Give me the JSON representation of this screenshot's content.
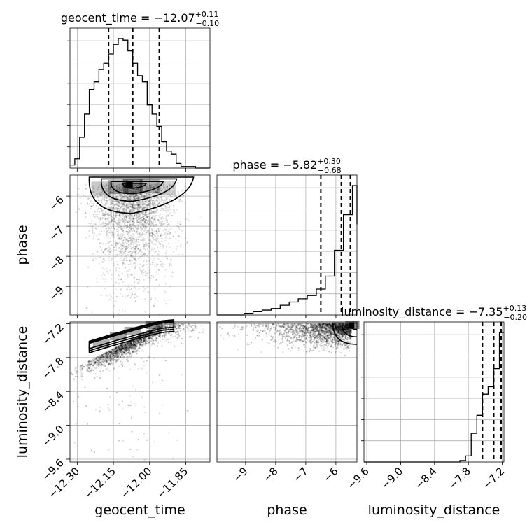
{
  "chart_data": {
    "type": "corner",
    "parameters": [
      "geocent_time",
      "phase",
      "luminosity_distance"
    ],
    "axis_labels": {
      "geocent_time": "geocent_time",
      "phase": "phase",
      "luminosity_distance": "luminosity_distance"
    },
    "ranges": {
      "geocent_time": [
        -12.33,
        -11.75
      ],
      "phase": [
        -9.95,
        -5.3
      ],
      "luminosity_distance": [
        -9.65,
        -7.17
      ]
    },
    "ticks": {
      "geocent_time": {
        "values": [
          -12.3,
          -12.15,
          -12.0,
          -11.85
        ],
        "labels": [
          "−12.30",
          "−12.15",
          "−12.00",
          "−11.85"
        ]
      },
      "phase": {
        "values": [
          -9,
          -8,
          -7,
          -6
        ],
        "labels": [
          "−9",
          "−8",
          "−7",
          "−6"
        ]
      },
      "luminosity_distance": {
        "values": [
          -9.6,
          -9.0,
          -8.4,
          -7.8,
          -7.2
        ],
        "labels": [
          "−9.6",
          "−9.0",
          "−8.4",
          "−7.8",
          "−7.2"
        ]
      }
    },
    "summaries": [
      {
        "param": "geocent_time",
        "prefix": "geocent_time = −12.07",
        "plus": "+0.11",
        "minus": "−0.10",
        "median": -12.07,
        "lo": -12.17,
        "hi": -11.96
      },
      {
        "param": "phase",
        "prefix": "phase = −5.82",
        "plus": "+0.30",
        "minus": "−0.68",
        "median": -5.82,
        "lo": -6.5,
        "hi": -5.52
      },
      {
        "param": "luminosity_distance",
        "prefix": "luminosity_distance = −7.35",
        "plus": "+0.13",
        "minus": "−0.20",
        "median": -7.35,
        "lo": -7.55,
        "hi": -7.22
      }
    ],
    "histograms": {
      "geocent_time": {
        "edges": [
          -12.33,
          -12.31,
          -12.29,
          -12.27,
          -12.25,
          -12.23,
          -12.21,
          -12.19,
          -12.17,
          -12.15,
          -12.13,
          -12.11,
          -12.09,
          -12.07,
          -12.05,
          -12.03,
          -12.01,
          -11.99,
          -11.97,
          -11.95,
          -11.93,
          -11.91,
          -11.89,
          -11.87,
          -11.85,
          -11.83,
          -11.81,
          -11.79,
          -11.77,
          -11.75
        ],
        "counts": [
          2,
          6,
          20,
          35,
          51,
          56,
          64,
          68,
          74,
          80,
          84,
          83,
          76,
          68,
          60,
          56,
          41,
          35,
          27,
          17,
          11,
          9,
          3,
          1,
          1,
          1,
          0,
          0,
          0
        ]
      },
      "phase": {
        "edges": [
          -9.95,
          -9.65,
          -9.35,
          -9.05,
          -8.75,
          -8.45,
          -8.15,
          -7.85,
          -7.55,
          -7.25,
          -6.95,
          -6.65,
          -6.35,
          -6.05,
          -5.75,
          -5.45,
          -5.3
        ],
        "counts": [
          0,
          0,
          0,
          1,
          2,
          3,
          4,
          6,
          8,
          10,
          12,
          16,
          24,
          40,
          62,
          80,
          56
        ]
      },
      "luminosity_distance": {
        "edges": [
          -9.65,
          -9.55,
          -9.45,
          -9.35,
          -9.25,
          -9.15,
          -9.05,
          -8.95,
          -8.85,
          -8.75,
          -8.65,
          -8.55,
          -8.45,
          -8.35,
          -8.25,
          -8.15,
          -8.05,
          -7.95,
          -7.85,
          -7.75,
          -7.65,
          -7.55,
          -7.45,
          -7.35,
          -7.25,
          -7.17
        ],
        "counts": [
          0,
          0,
          0,
          0,
          0,
          0,
          0,
          0,
          0,
          0,
          0,
          0,
          0,
          0,
          0,
          0,
          0,
          1,
          4,
          19,
          31,
          45,
          50,
          62,
          86
        ]
      }
    },
    "grid": true,
    "density_color": "#000000",
    "marker_color": "#000000"
  }
}
